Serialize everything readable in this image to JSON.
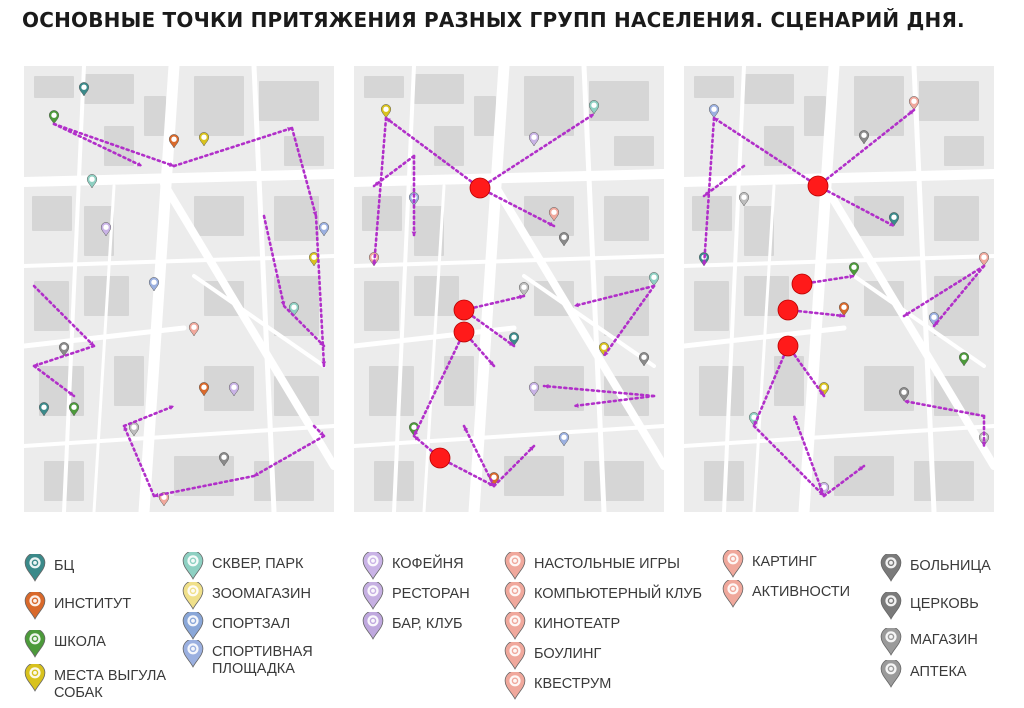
{
  "title": "ОСНОВНЫЕ ТОЧКИ ПРИТЯЖЕНИЯ РАЗНЫХ ГРУПП НАСЕЛЕНИЯ. СЦЕНАРИЙ ДНЯ.",
  "colors": {
    "route": "#b12fc9",
    "hub": "#ff1a1a",
    "map_background": "#ececec",
    "road": "#ffffff",
    "building": "#d6d6d6"
  },
  "legend": [
    {
      "label": "БЦ",
      "color": "#3b8a8a",
      "icon": "office-building-icon"
    },
    {
      "label": "ИНСТИТУТ",
      "color": "#d9692b",
      "icon": "graduation-cap-icon"
    },
    {
      "label": "ШКОЛА",
      "color": "#4c9a3a",
      "icon": "school-icon"
    },
    {
      "label": "МЕСТА ВЫГУЛА\nСОБАК",
      "color": "#d8c21e",
      "icon": "dog-paw-icon"
    },
    {
      "label": "СКВЕР, ПАРК",
      "color": "#8ed0c2",
      "icon": "tree-icon"
    },
    {
      "label": "ЗООМАГАЗИН",
      "color": "#f0e08a",
      "icon": "pet-shop-icon"
    },
    {
      "label": "СПОРТЗАЛ",
      "color": "#8aa7d8",
      "icon": "dumbbell-icon"
    },
    {
      "label": "СПОРТИВНАЯ\nПЛОЩАДКА",
      "color": "#9bb0e0",
      "icon": "ball-icon"
    },
    {
      "label": "КОФЕЙНЯ",
      "color": "#c9b3e6",
      "icon": "coffee-cup-icon"
    },
    {
      "label": "РЕСТОРАН",
      "color": "#c6b0e2",
      "icon": "cutlery-icon"
    },
    {
      "label": "БАР, КЛУБ",
      "color": "#bfa8de",
      "icon": "cocktail-icon"
    },
    {
      "label": "НАСТОЛЬНЫЕ ИГРЫ",
      "color": "#f0a89c",
      "icon": "dice-icon"
    },
    {
      "label": "КОМПЬЮТЕРНЫЙ КЛУБ",
      "color": "#f0a89c",
      "icon": "gamepad-icon"
    },
    {
      "label": "КИНОТЕАТР",
      "color": "#f0a89c",
      "icon": "film-icon"
    },
    {
      "label": "БОУЛИНГ",
      "color": "#f0a89c",
      "icon": "bowling-icon"
    },
    {
      "label": "КВЕСТРУМ",
      "color": "#f0a89c",
      "icon": "key-icon"
    },
    {
      "label": "КАРТИНГ",
      "color": "#f0a89c",
      "icon": "kart-icon"
    },
    {
      "label": "АКТИВНОСТИ",
      "color": "#f0a89c",
      "icon": "activity-icon"
    },
    {
      "label": "БОЛЬНИЦА",
      "color": "#7a7a7a",
      "icon": "hospital-icon"
    },
    {
      "label": "ЦЕРКОВЬ",
      "color": "#7a7a7a",
      "icon": "church-icon"
    },
    {
      "label": "МАГАЗИН",
      "color": "#9a9a9a",
      "icon": "shop-icon"
    },
    {
      "label": "АПТЕКА",
      "color": "#9a9a9a",
      "icon": "pharmacy-icon"
    }
  ]
}
